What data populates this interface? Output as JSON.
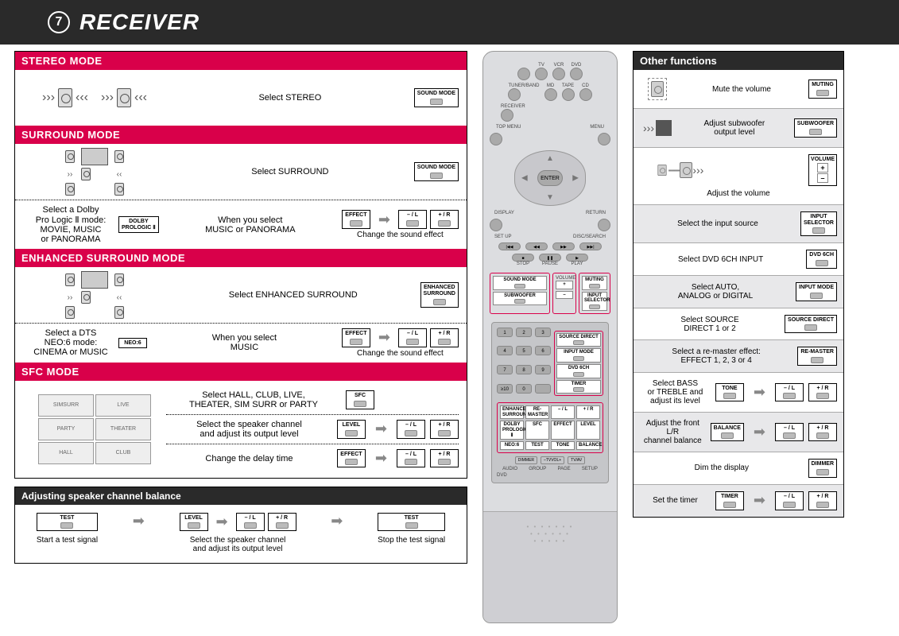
{
  "header": {
    "number": "7",
    "title": "RECEIVER"
  },
  "modes": {
    "stereo": {
      "header": "STEREO MODE",
      "action": "Select STEREO",
      "button": "SOUND MODE"
    },
    "surround": {
      "header": "SURROUND MODE",
      "action": "Select SURROUND",
      "button": "SOUND MODE",
      "sub": {
        "left_text": "Select a Dolby\nPro Logic Ⅱ mode:\nMOVIE, MUSIC\nor PANORAMA",
        "left_key": "DOLBY\nPROLOGIC Ⅱ",
        "mid_text": "When you select\nMUSIC or PANORAMA",
        "effect_key": "EFFECT",
        "minus_key": "– / L",
        "plus_key": "+ / R",
        "caption": "Change the sound effect"
      }
    },
    "enhanced": {
      "header": "ENHANCED SURROUND MODE",
      "action": "Select ENHANCED SURROUND",
      "button": "ENHANCED\nSURROUND",
      "sub": {
        "left_text": "Select a DTS\nNEO:6 mode:\nCINEMA or MUSIC",
        "left_key": "NEO:6",
        "mid_text": "When you select\nMUSIC",
        "effect_key": "EFFECT",
        "minus_key": "– / L",
        "plus_key": "+ / R",
        "caption": "Change the sound effect"
      }
    },
    "sfc": {
      "header": "SFC MODE",
      "row1": {
        "text": "Select HALL, CLUB, LIVE,\nTHEATER, SIM SURR or PARTY",
        "key": "SFC"
      },
      "row2": {
        "text": "Select the speaker channel\nand adjust its output level",
        "key": "LEVEL",
        "minus": "– / L",
        "plus": "+ / R"
      },
      "row3": {
        "text": "Change the delay time",
        "key": "EFFECT",
        "minus": "– / L",
        "plus": "+ / R"
      },
      "thumbs": [
        "SIMSURR",
        "LIVE",
        "PARTY",
        "THEATER",
        "HALL",
        "CLUB"
      ]
    }
  },
  "balance": {
    "header": "Adjusting speaker channel balance",
    "start": {
      "key": "TEST",
      "caption": "Start a test signal"
    },
    "level": {
      "key": "LEVEL",
      "caption": "Select the speaker channel\nand adjust its output level",
      "minus": "– / L",
      "plus": "+ / R"
    },
    "stop": {
      "key": "TEST",
      "caption": "Stop the test signal"
    }
  },
  "remote": {
    "top_rows": [
      [
        "",
        "TV",
        "VCR",
        "DVD"
      ],
      [
        "TUNER/BAND",
        "MD",
        "TAPE",
        "CD"
      ],
      [
        "RECEIVER",
        "",
        "",
        ""
      ]
    ],
    "menu_left": "TOP MENU",
    "menu_right": "MENU",
    "enter": "ENTER",
    "side_labels": {
      "display": "DISPLAY",
      "return": "RETURN",
      "setup": "SET UP",
      "search": "DISC/SEARCH"
    },
    "transport": [
      "STOP",
      "PAUSE",
      "PLAY"
    ],
    "red_group1": {
      "sound_mode": "SOUND MODE",
      "subwoofer": "SUBWOOFER",
      "volume": "VOLUME",
      "plus": "+",
      "minus": "–",
      "muting": "MUTING",
      "input_sel": "INPUT\nSELECTOR"
    },
    "keypad_side": [
      "SOURCE DIRECT",
      "INPUT MODE",
      "DVD 6CH",
      "TIMER"
    ],
    "red_group2": {
      "r1": [
        "ENHANCED\nSURROUND",
        "RE-MASTER",
        "– / L",
        "+ / R"
      ],
      "r2": [
        "DOLBY\nPROLOGIC Ⅱ",
        "SFC",
        "EFFECT",
        "LEVEL"
      ],
      "r3": [
        "NEO:6",
        "TEST",
        "TONE",
        "BALANCE"
      ]
    },
    "dimmer_row": [
      "DIMMER",
      "–TVVOL+",
      "TV/AV"
    ],
    "bottom_labels": [
      "AUDIO",
      "GROUP",
      "PAGE",
      "SETUP"
    ],
    "dvd_label": "DVD"
  },
  "other": {
    "header": "Other functions",
    "rows": [
      {
        "text": "Mute the volume",
        "key": "MUTING",
        "tint": false,
        "icon": "speaker-dashed"
      },
      {
        "text": "Adjust subwoofer\noutput level",
        "key": "SUBWOOFER",
        "tint": true,
        "icon": "sub-waves"
      },
      {
        "text": "Adjust the volume",
        "key": "VOLUME",
        "tint": false,
        "icon": "vol-bars",
        "volkey": true
      },
      {
        "text": "Select the input source",
        "key": "INPUT\nSELECTOR",
        "tint": true
      },
      {
        "text": "Select DVD 6CH INPUT",
        "key": "DVD 6CH",
        "tint": false
      },
      {
        "text": "Select AUTO,\nANALOG or DIGITAL",
        "key": "INPUT MODE",
        "tint": true
      },
      {
        "text": "Select SOURCE\nDIRECT 1 or 2",
        "key": "SOURCE DIRECT",
        "tint": false
      },
      {
        "text": "Select a re-master effect:\nEFFECT 1, 2, 3 or 4",
        "key": "RE-MASTER",
        "tint": true
      },
      {
        "text": "Select BASS\nor TREBLE and\nadjust its level",
        "key": "TONE",
        "tint": false,
        "arrows": true,
        "minus": "– / L",
        "plus": "+ / R"
      },
      {
        "text": "Adjust the front L/R\nchannel balance",
        "key": "BALANCE",
        "tint": true,
        "arrows": true,
        "minus": "– / L",
        "plus": "+ / R"
      },
      {
        "text": "Dim the display",
        "key": "DIMMER",
        "tint": false
      },
      {
        "text": "Set the timer",
        "key": "TIMER",
        "tint": true,
        "arrows": true,
        "minus": "– / L",
        "plus": "+ / R"
      }
    ]
  },
  "colors": {
    "accent": "#d9004a",
    "dark": "#2a2a2a",
    "remote_bg": "#dcdde0",
    "tint": "#e8e8ea"
  }
}
